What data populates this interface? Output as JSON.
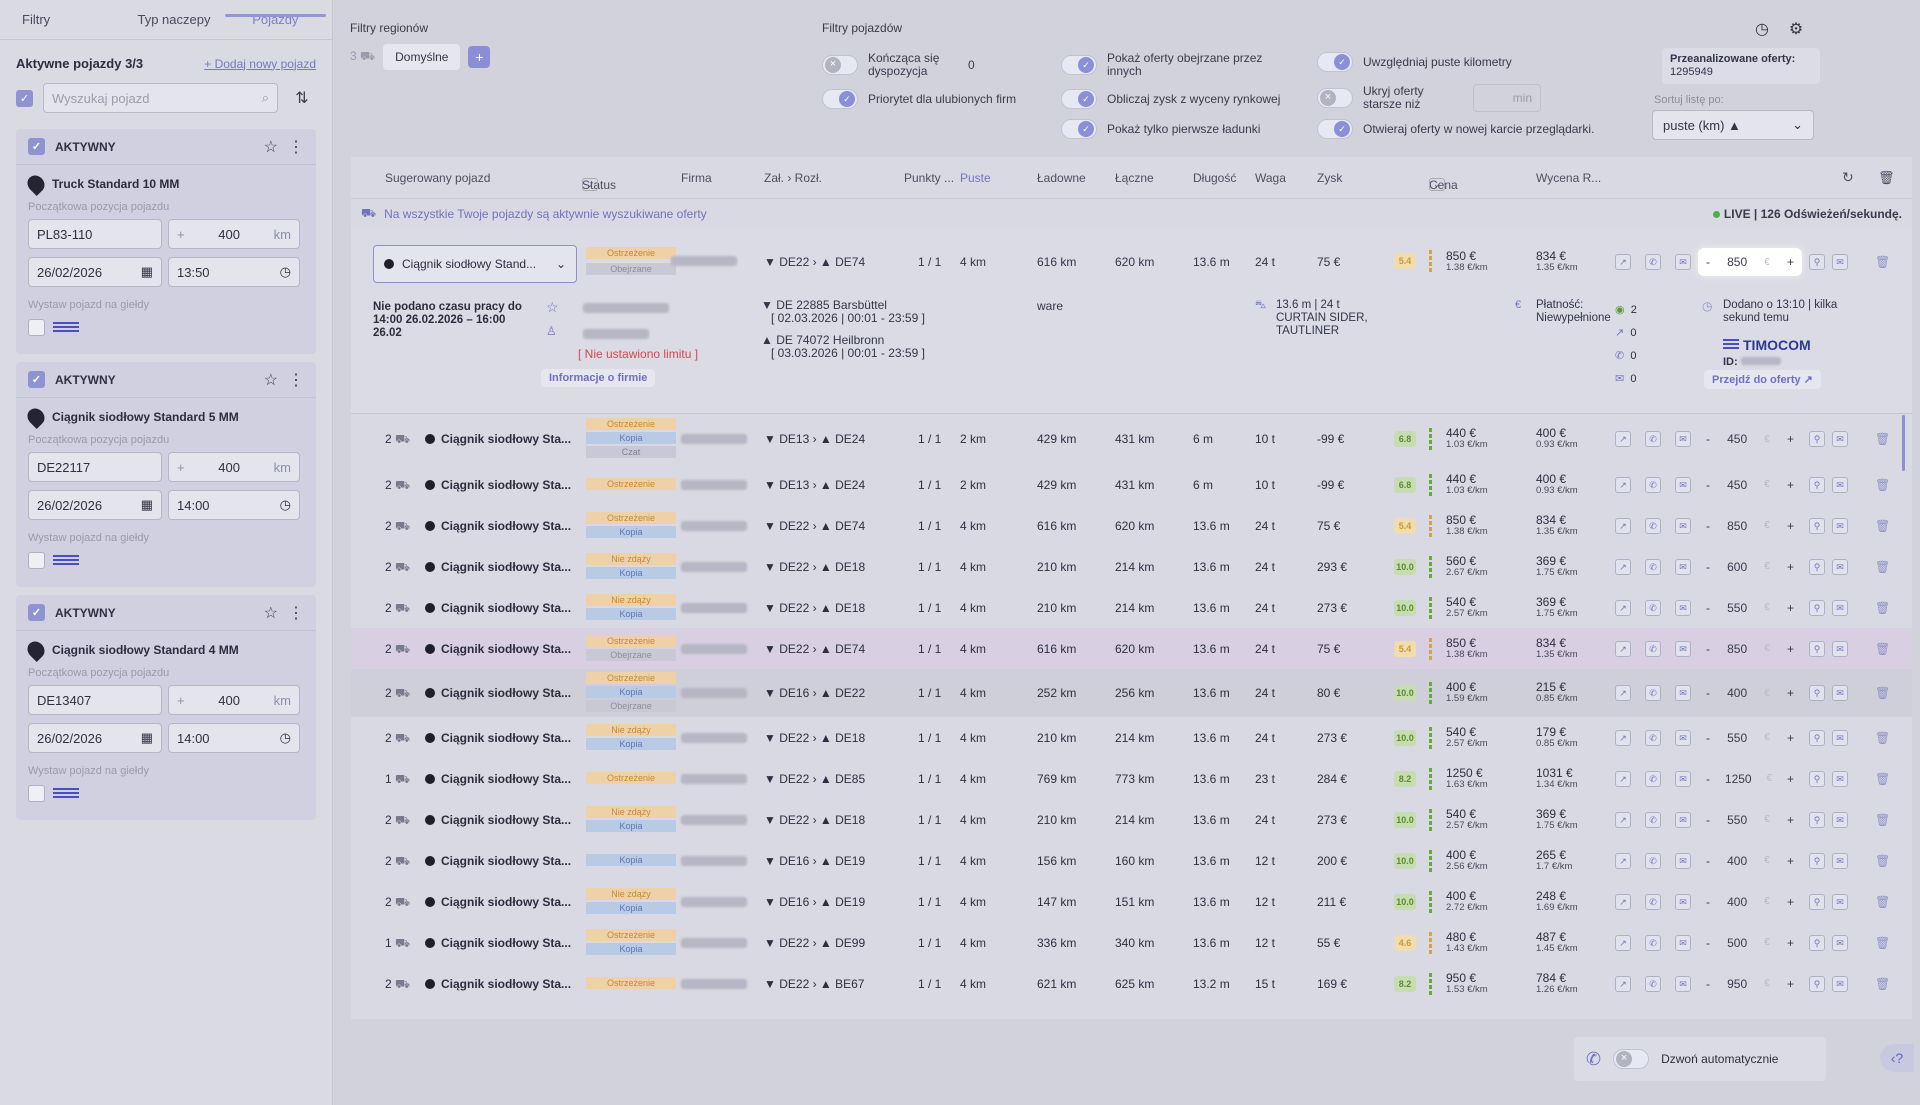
{
  "sidebar": {
    "tabs": [
      "Filtry",
      "Typ naczepy",
      "Pojazdy"
    ],
    "active_label": "Aktywne pojazdy 3/3",
    "add_link": "+ Dodaj nowy pojazd",
    "search_placeholder": "Wyszukaj pojazd",
    "start_label": "Początkowa pozycja pojazdu",
    "exchange_label": "Wystaw pojazd na giełdy",
    "km_unit": "km",
    "vehicles": [
      {
        "status": "AKTYWNY",
        "name": "Truck Standard 10 MM",
        "plate": "PL83-110",
        "radius": "400",
        "date": "26/02/2026",
        "time": "13:50"
      },
      {
        "status": "AKTYWNY",
        "name": "Ciągnik siodłowy Standard 5 MM",
        "plate": "DE22117",
        "radius": "400",
        "date": "26/02/2026",
        "time": "14:00"
      },
      {
        "status": "AKTYWNY",
        "name": "Ciągnik siodłowy Standard 4 MM",
        "plate": "DE13407",
        "radius": "400",
        "date": "26/02/2026",
        "time": "14:00"
      }
    ]
  },
  "top": {
    "regions_title": "Filtry regionów",
    "regions_count": "3",
    "regions_default": "Domyślne",
    "vehicle_filters_title": "Filtry pojazdów",
    "filters": {
      "f1": "Kończąca się dyspozycja",
      "f1_val": "0",
      "f2": "Priorytet dla ulubionych firm",
      "f3": "Pokaż oferty obejrzane przez innych",
      "f4": "Obliczaj zysk z wyceny rynkowej",
      "f5": "Pokaż tylko pierwsze ładunki",
      "f6": "Uwzględniaj puste kilometry",
      "f7": "Ukryj oferty starsze niż",
      "f7_unit": "min",
      "f8": "Otwieraj oferty w nowej karcie przeglądarki."
    },
    "analyzed_label": "Przeanalizowane oferty:",
    "analyzed_value": "1295949",
    "sort_label": "Sortuj listę po:",
    "sort_value": "puste (km) ▲"
  },
  "table": {
    "headers": {
      "vehicle": "Sugerowany pojazd",
      "status": "Status",
      "firm": "Firma",
      "route": "Zał. › Rozł.",
      "points": "Punkty ...",
      "empty": "Puste",
      "loaded": "Ładowne",
      "total": "Łączne",
      "length": "Długość",
      "weight": "Waga",
      "profit": "Zysk",
      "price": "Cena",
      "valuation": "Wycena R..."
    },
    "info_text": "Na wszystkie Twoje pojazdy są aktywnie wyszukiwane oferty",
    "live_text": "LIVE | 126 Odświeżeń/sekundę.",
    "expanded": {
      "vehicle": "Ciągnik siodłowy Stand...",
      "badges": [
        "Ostrzeżenie",
        "Obejrzane"
      ],
      "from": "DE22",
      "to": "DE74",
      "points": "1 / 1",
      "empty": "4 km",
      "loaded": "616 km",
      "total": "620 km",
      "length": "13.6 m",
      "weight": "24 t",
      "profit": "75 €",
      "score": "5.4",
      "price": "850 €",
      "price_km": "1.38 €/km",
      "val": "834 €",
      "val_km": "1.35 €/km",
      "input": "850",
      "work_time": "Nie podano czasu pracy do 14:00 26.02.2026 – 16:00 26.02",
      "limit": "[ Nie ustawiono limitu ]",
      "company_info": "Informacje o firmie",
      "load_place": "DE 22885 Barsbüttel",
      "load_time": "[ 02.03.2026 | 00:01 - 23:59 ]",
      "unload_place": "DE 74072 Heilbronn",
      "unload_time": "[ 03.03.2026 | 00:01 - 23:59 ]",
      "goods": "ware",
      "truck_spec": "13.6 m | 24 t CURTAIN SIDER, TAUTLINER",
      "payment": "Płatność: Niewypełnione",
      "views": "2",
      "c1": "0",
      "c2": "0",
      "c3": "0",
      "added": "Dodano o 13:10 | kilka sekund temu",
      "source": "TIMOCOM",
      "id_label": "ID:",
      "go_offers": "Przejdź do oferty ↗"
    },
    "rows": [
      {
        "n": "2",
        "veh": "Ciągnik siodłowy Sta...",
        "b": [
          "Ostrzeżenie",
          "Kopia",
          "Czat"
        ],
        "f": "DE13",
        "t": "DE24",
        "p": "1 / 1",
        "e": "2 km",
        "l": "429 km",
        "tot": "431 km",
        "len": "6 m",
        "w": "10 t",
        "pr": "-99 €",
        "s": "6.8",
        "sc": "g",
        "pc": "440 €",
        "pk": "1.03 €/km",
        "v": "400 €",
        "vk": "0.93 €/km",
        "in": "450"
      },
      {
        "n": "2",
        "veh": "Ciągnik siodłowy Sta...",
        "b": [
          "Ostrzeżenie"
        ],
        "f": "DE13",
        "t": "DE24",
        "p": "1 / 1",
        "e": "2 km",
        "l": "429 km",
        "tot": "431 km",
        "len": "6 m",
        "w": "10 t",
        "pr": "-99 €",
        "s": "6.8",
        "sc": "g",
        "pc": "440 €",
        "pk": "1.03 €/km",
        "v": "400 €",
        "vk": "0.93 €/km",
        "in": "450"
      },
      {
        "n": "2",
        "veh": "Ciągnik siodłowy Sta...",
        "b": [
          "Ostrzeżenie",
          "Kopia"
        ],
        "f": "DE22",
        "t": "DE74",
        "p": "1 / 1",
        "e": "4 km",
        "l": "616 km",
        "tot": "620 km",
        "len": "13.6 m",
        "w": "24 t",
        "pr": "75 €",
        "s": "5.4",
        "sc": "y",
        "pc": "850 €",
        "pk": "1.38 €/km",
        "v": "834 €",
        "vk": "1.35 €/km",
        "in": "850"
      },
      {
        "n": "2",
        "veh": "Ciągnik siodłowy Sta...",
        "b": [
          "Nie zdąży",
          "Kopia"
        ],
        "f": "DE22",
        "t": "DE18",
        "p": "1 / 1",
        "e": "4 km",
        "l": "210 km",
        "tot": "214 km",
        "len": "13.6 m",
        "w": "24 t",
        "pr": "293 €",
        "s": "10.0",
        "sc": "g",
        "pc": "560 €",
        "pk": "2.67 €/km",
        "v": "369 €",
        "vk": "1.75 €/km",
        "in": "600"
      },
      {
        "n": "2",
        "veh": "Ciągnik siodłowy Sta...",
        "b": [
          "Nie zdąży",
          "Kopia"
        ],
        "f": "DE22",
        "t": "DE18",
        "p": "1 / 1",
        "e": "4 km",
        "l": "210 km",
        "tot": "214 km",
        "len": "13.6 m",
        "w": "24 t",
        "pr": "273 €",
        "s": "10.0",
        "sc": "g",
        "pc": "540 €",
        "pk": "2.57 €/km",
        "v": "369 €",
        "vk": "1.75 €/km",
        "in": "550"
      },
      {
        "n": "2",
        "veh": "Ciągnik siodłowy Sta...",
        "b": [
          "Ostrzeżenie",
          "Obejrzane"
        ],
        "f": "DE22",
        "t": "DE74",
        "p": "1 / 1",
        "e": "4 km",
        "l": "616 km",
        "tot": "620 km",
        "len": "13.6 m",
        "w": "24 t",
        "pr": "75 €",
        "s": "5.4",
        "sc": "y",
        "pc": "850 €",
        "pk": "1.38 €/km",
        "v": "834 €",
        "vk": "1.35 €/km",
        "in": "850",
        "hl": true
      },
      {
        "n": "2",
        "veh": "Ciągnik siodłowy Sta...",
        "b": [
          "Ostrzeżenie",
          "Kopia",
          "Obejrzane"
        ],
        "f": "DE16",
        "t": "DE22",
        "p": "1 / 1",
        "e": "4 km",
        "l": "252 km",
        "tot": "256 km",
        "len": "13.6 m",
        "w": "24 t",
        "pr": "80 €",
        "s": "10.0",
        "sc": "g",
        "pc": "400 €",
        "pk": "1.59 €/km",
        "v": "215 €",
        "vk": "0.85 €/km",
        "in": "400",
        "gr": true
      },
      {
        "n": "2",
        "veh": "Ciągnik siodłowy Sta...",
        "b": [
          "Nie zdąży",
          "Kopia"
        ],
        "f": "DE22",
        "t": "DE18",
        "p": "1 / 1",
        "e": "4 km",
        "l": "210 km",
        "tot": "214 km",
        "len": "13.6 m",
        "w": "24 t",
        "pr": "273 €",
        "s": "10.0",
        "sc": "g",
        "pc": "540 €",
        "pk": "2.57 €/km",
        "v": "179 €",
        "vk": "0.85 €/km",
        "in": "550"
      },
      {
        "n": "1",
        "veh": "Ciągnik siodłowy Sta...",
        "b": [
          "Ostrzeżenie"
        ],
        "f": "DE22",
        "t": "DE85",
        "p": "1 / 1",
        "e": "4 km",
        "l": "769 km",
        "tot": "773 km",
        "len": "13.6 m",
        "w": "23 t",
        "pr": "284 €",
        "s": "8.2",
        "sc": "g",
        "pc": "1250 €",
        "pk": "1.63 €/km",
        "v": "1031 €",
        "vk": "1.34 €/km",
        "in": "1250"
      },
      {
        "n": "2",
        "veh": "Ciągnik siodłowy Sta...",
        "b": [
          "Nie zdąży",
          "Kopia"
        ],
        "f": "DE22",
        "t": "DE18",
        "p": "1 / 1",
        "e": "4 km",
        "l": "210 km",
        "tot": "214 km",
        "len": "13.6 m",
        "w": "24 t",
        "pr": "273 €",
        "s": "10.0",
        "sc": "g",
        "pc": "540 €",
        "pk": "2.57 €/km",
        "v": "369 €",
        "vk": "1.75 €/km",
        "in": "550"
      },
      {
        "n": "2",
        "veh": "Ciągnik siodłowy Sta...",
        "b": [
          "Kopia"
        ],
        "f": "DE16",
        "t": "DE19",
        "p": "1 / 1",
        "e": "4 km",
        "l": "156 km",
        "tot": "160 km",
        "len": "13.6 m",
        "w": "12 t",
        "pr": "200 €",
        "s": "10.0",
        "sc": "g",
        "pc": "400 €",
        "pk": "2.56 €/km",
        "v": "265 €",
        "vk": "1.7 €/km",
        "in": "400"
      },
      {
        "n": "2",
        "veh": "Ciągnik siodłowy Sta...",
        "b": [
          "Nie zdąży",
          "Kopia"
        ],
        "f": "DE16",
        "t": "DE19",
        "p": "1 / 1",
        "e": "4 km",
        "l": "147 km",
        "tot": "151 km",
        "len": "13.6 m",
        "w": "12 t",
        "pr": "211 €",
        "s": "10.0",
        "sc": "g",
        "pc": "400 €",
        "pk": "2.72 €/km",
        "v": "248 €",
        "vk": "1.69 €/km",
        "in": "400"
      },
      {
        "n": "1",
        "veh": "Ciągnik siodłowy Sta...",
        "b": [
          "Ostrzeżenie",
          "Kopia"
        ],
        "f": "DE22",
        "t": "DE99",
        "p": "1 / 1",
        "e": "4 km",
        "l": "336 km",
        "tot": "340 km",
        "len": "13.6 m",
        "w": "12 t",
        "pr": "55 €",
        "s": "4.6",
        "sc": "y",
        "pc": "480 €",
        "pk": "1.43 €/km",
        "v": "487 €",
        "vk": "1.45 €/km",
        "in": "500"
      },
      {
        "n": "2",
        "veh": "Ciągnik siodłowy Sta...",
        "b": [
          "Ostrzeżenie"
        ],
        "f": "DE22",
        "t": "BE67",
        "p": "1 / 1",
        "e": "4 km",
        "l": "621 km",
        "tot": "625 km",
        "len": "13.2 m",
        "w": "15 t",
        "pr": "169 €",
        "s": "8.2",
        "sc": "g",
        "pc": "950 €",
        "pk": "1.53 €/km",
        "v": "784 €",
        "vk": "1.26 €/km",
        "in": "950"
      }
    ],
    "euro": "€"
  },
  "bottom": {
    "auto_call": "Dzwoń automatycznie"
  }
}
